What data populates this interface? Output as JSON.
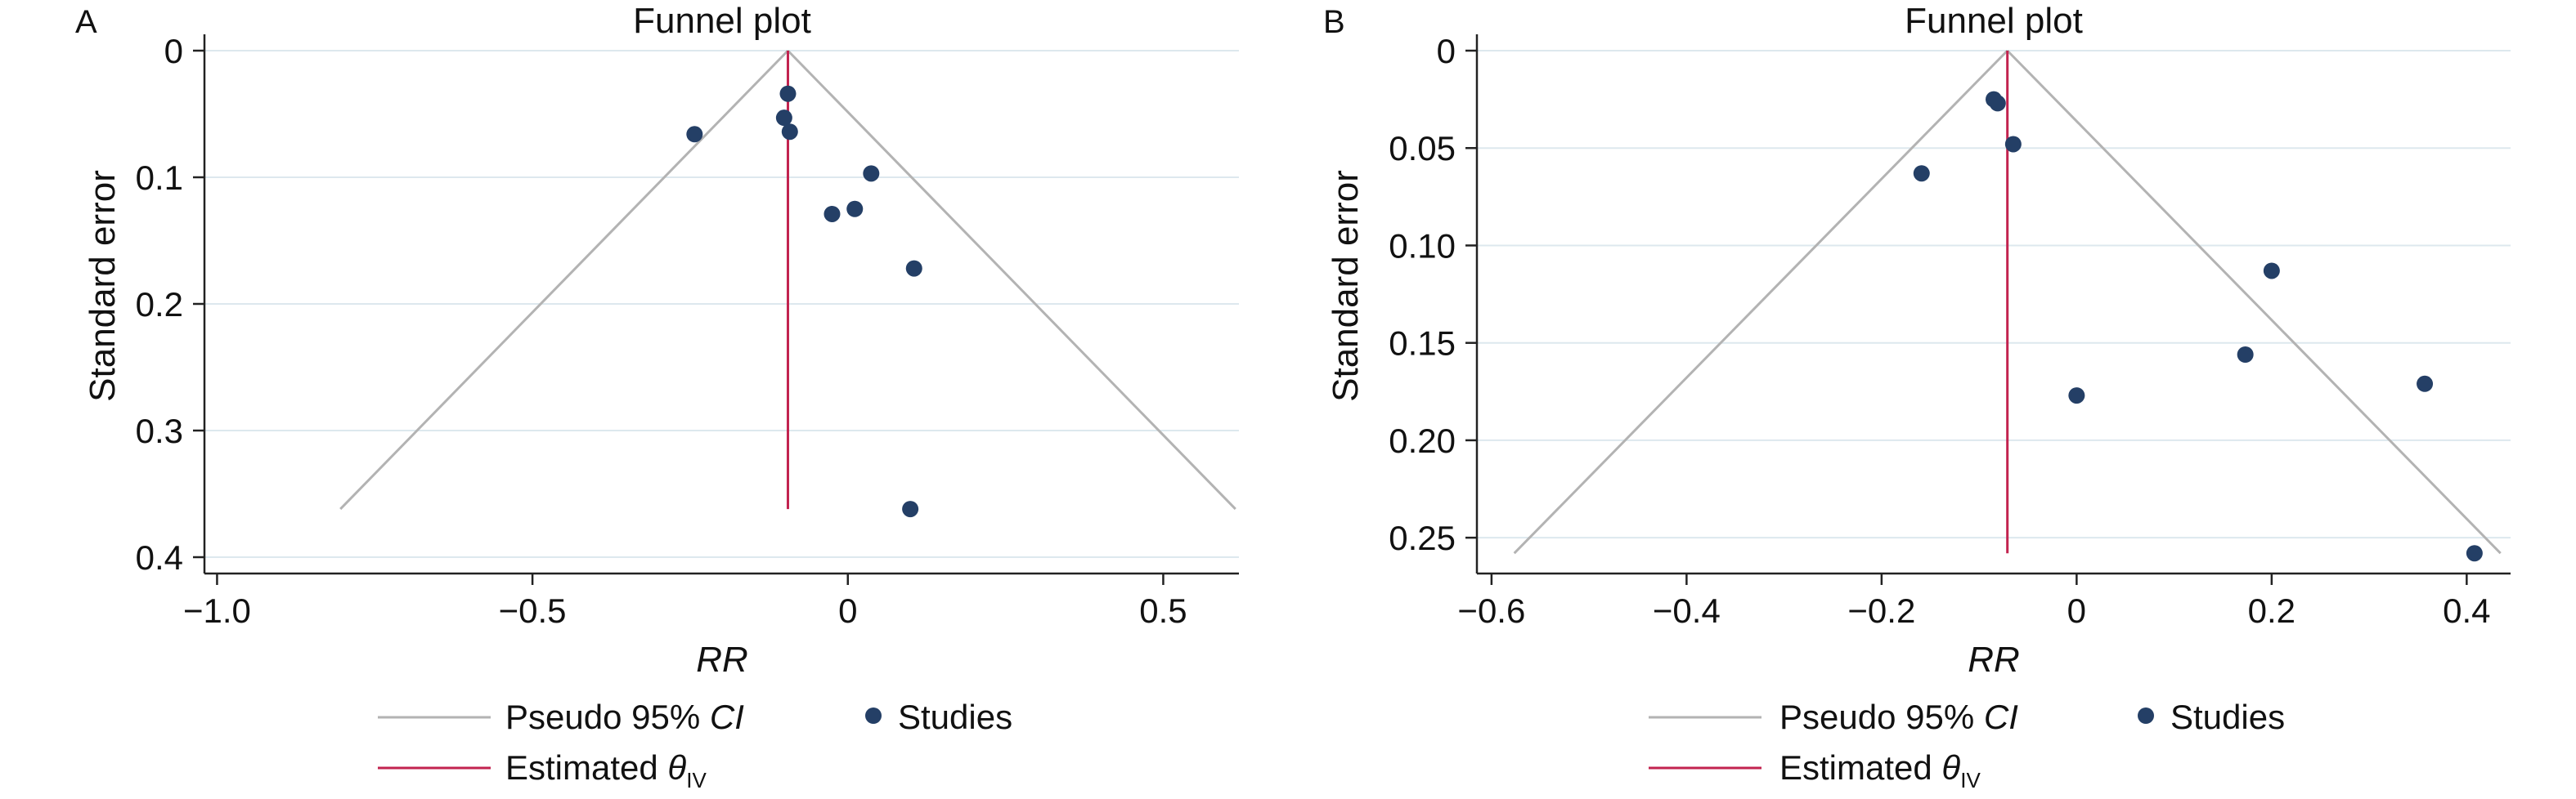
{
  "colors": {
    "ci_line": "#b3b3b3",
    "estimate_line": "#c2234f",
    "points": "#243f66",
    "grid": "#dde8ee"
  },
  "chart_data": [
    {
      "panel": "A",
      "type": "scatter",
      "title": "Funnel plot",
      "xlabel": "RR",
      "ylabel": "Standard error",
      "xlim": [
        -1.02,
        0.62
      ],
      "ylim": [
        0.4,
        0.0
      ],
      "y_inverted": true,
      "grid": true,
      "xticks": [
        -1.0,
        -0.5,
        0,
        0.5
      ],
      "xtick_labels": [
        "−1.0",
        "−0.5",
        "0",
        "0.5"
      ],
      "yticks": [
        0,
        0.1,
        0.2,
        0.3,
        0.4
      ],
      "ytick_labels": [
        "0",
        "0.1",
        "0.2",
        "0.3",
        "0.4"
      ],
      "estimate": -0.095,
      "ci_max_se": 0.362,
      "series": [
        {
          "name": "Studies",
          "points": [
            {
              "x": -0.243,
              "y": 0.066
            },
            {
              "x": -0.095,
              "y": 0.034
            },
            {
              "x": -0.101,
              "y": 0.053
            },
            {
              "x": -0.092,
              "y": 0.064
            },
            {
              "x": 0.037,
              "y": 0.097
            },
            {
              "x": -0.025,
              "y": 0.129
            },
            {
              "x": 0.011,
              "y": 0.125
            },
            {
              "x": 0.105,
              "y": 0.172
            },
            {
              "x": 0.099,
              "y": 0.362
            }
          ]
        }
      ],
      "legend": {
        "position": "bottom",
        "ci_label": "Pseudo 95% ",
        "ci_label_italic": "CI",
        "studies_label": "Studies",
        "estimate_label": "Estimated ",
        "estimate_symbol": "θ",
        "estimate_subscript": "IV"
      }
    },
    {
      "panel": "B",
      "type": "scatter",
      "title": "Funnel plot",
      "xlabel": "RR",
      "ylabel": "Standard error",
      "xlim": [
        -0.615,
        0.445
      ],
      "ylim": [
        0.26,
        0.0
      ],
      "y_inverted": true,
      "grid": true,
      "xticks": [
        -0.6,
        -0.4,
        -0.2,
        0,
        0.2,
        0.4
      ],
      "xtick_labels": [
        "−0.6",
        "−0.4",
        "−0.2",
        "0",
        "0.2",
        "0.4"
      ],
      "yticks": [
        0,
        0.05,
        0.1,
        0.15,
        0.2,
        0.25
      ],
      "ytick_labels": [
        "0",
        "0.05",
        "0.10",
        "0.15",
        "0.20",
        "0.25"
      ],
      "estimate": -0.071,
      "ci_max_se": 0.258,
      "series": [
        {
          "name": "Studies",
          "points": [
            {
              "x": -0.085,
              "y": 0.025
            },
            {
              "x": -0.081,
              "y": 0.027
            },
            {
              "x": -0.065,
              "y": 0.048
            },
            {
              "x": -0.159,
              "y": 0.063
            },
            {
              "x": 0.2,
              "y": 0.113
            },
            {
              "x": 0.173,
              "y": 0.156
            },
            {
              "x": 0.0,
              "y": 0.177
            },
            {
              "x": 0.357,
              "y": 0.171
            },
            {
              "x": 0.408,
              "y": 0.258
            }
          ]
        }
      ],
      "legend": {
        "position": "bottom",
        "ci_label": "Pseudo 95% ",
        "ci_label_italic": "CI",
        "studies_label": "Studies",
        "estimate_label": "Estimated ",
        "estimate_symbol": "θ",
        "estimate_subscript": "IV"
      }
    }
  ]
}
